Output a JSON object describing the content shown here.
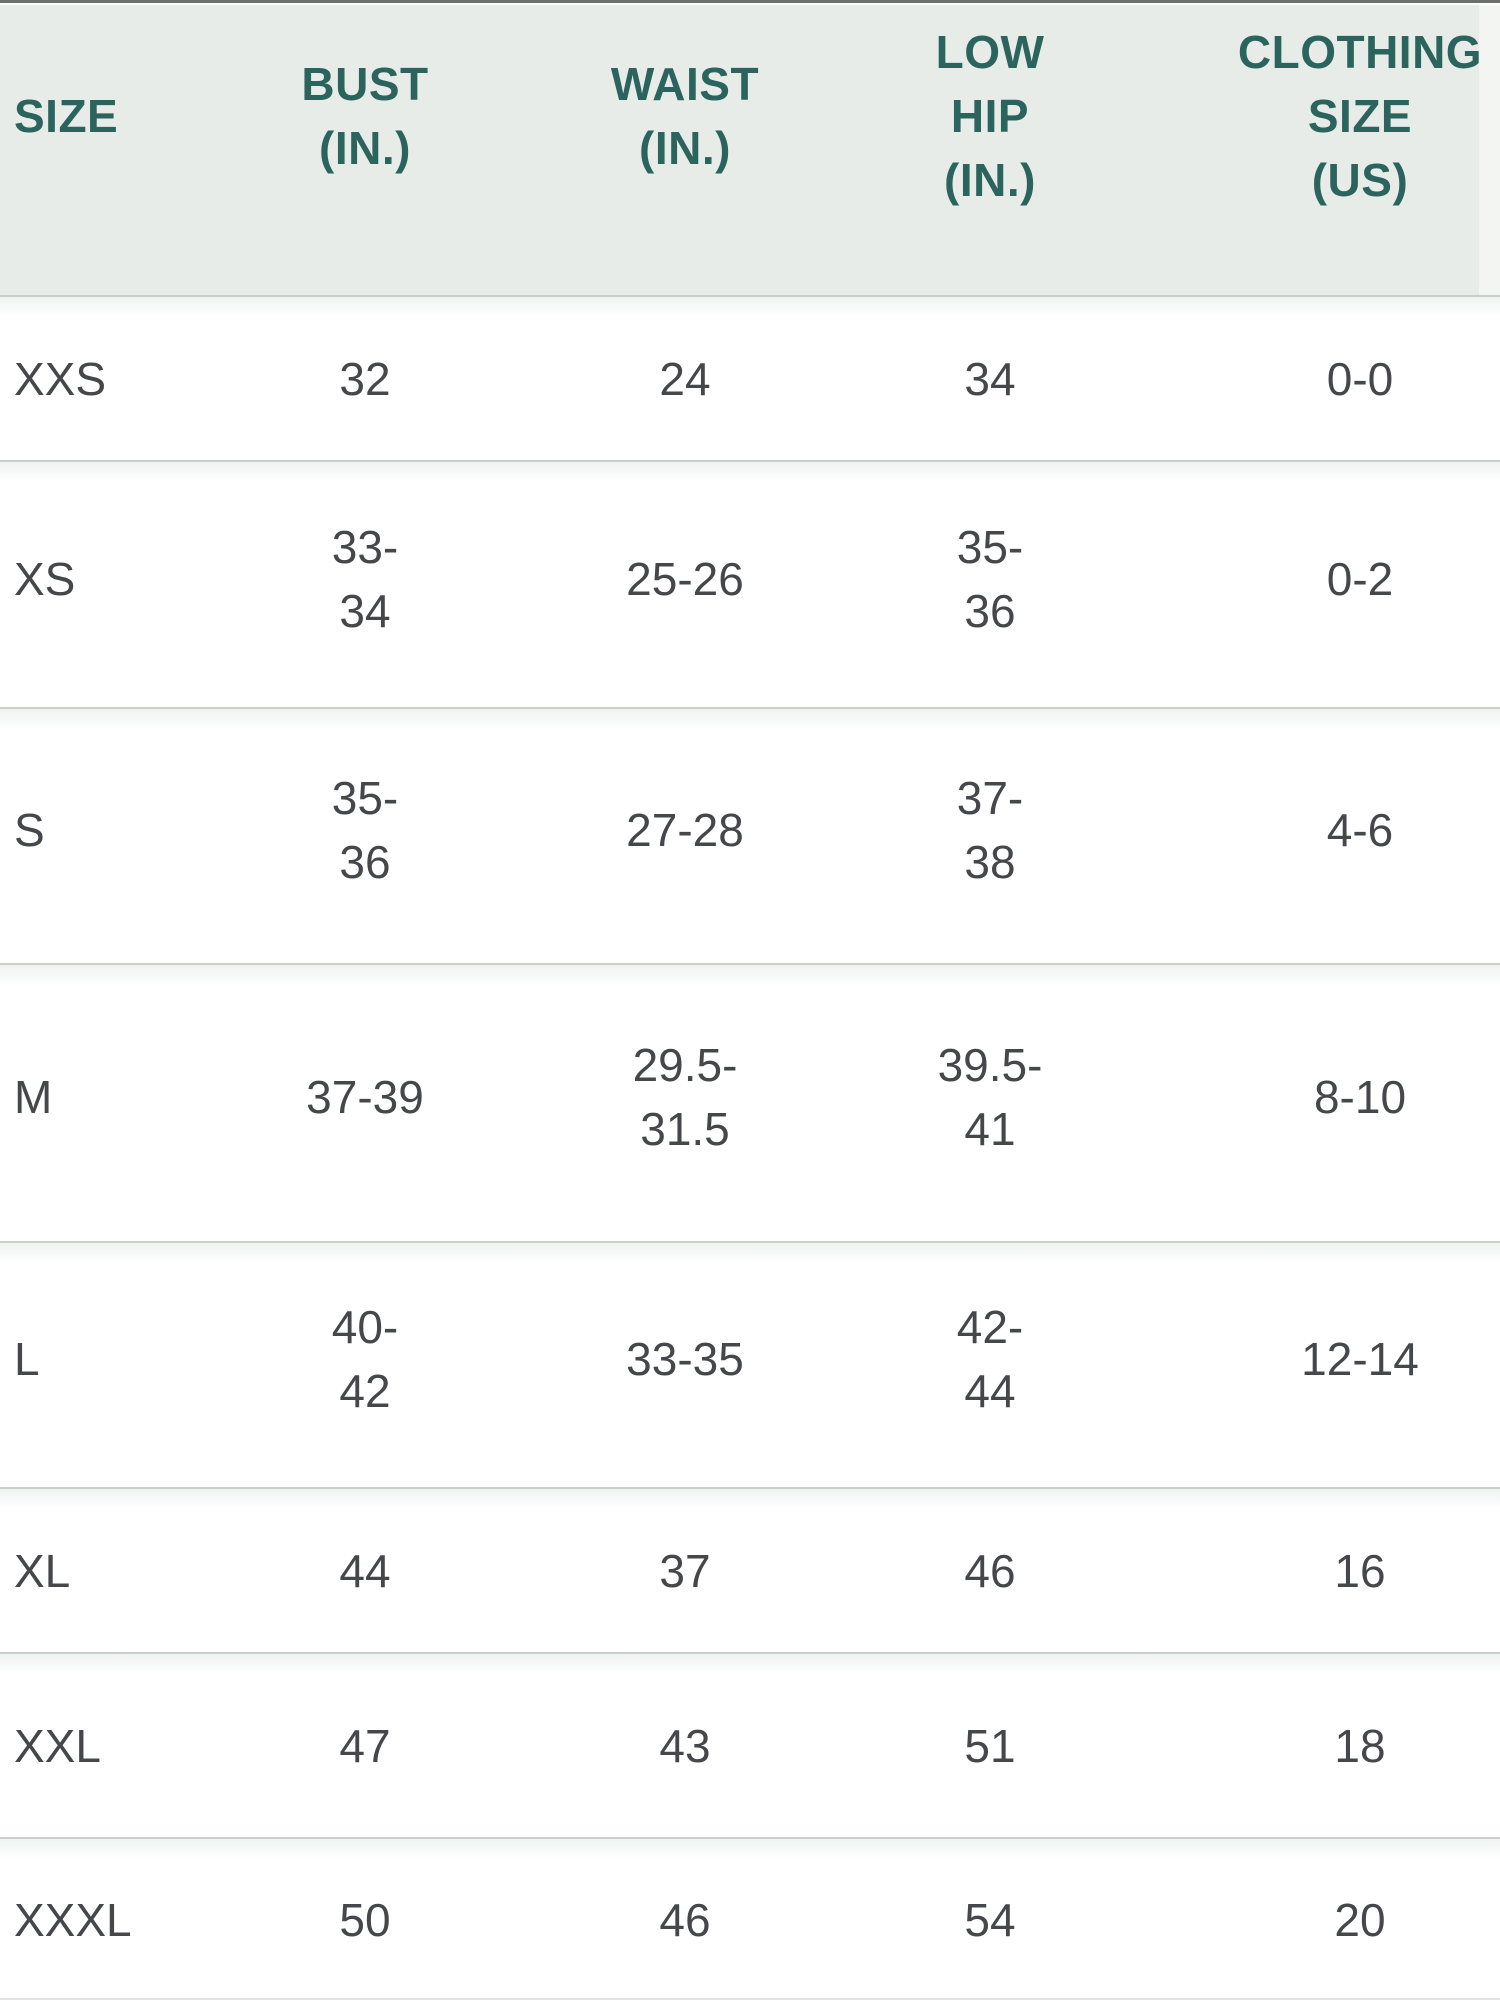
{
  "colors": {
    "header-bg": "#e7ece8",
    "header-text": "#2b635d",
    "body-text": "#45474a",
    "divider": "#c9d0cc",
    "row-fade": "#eef3f0",
    "top-edge": "#6b6f6d",
    "corner-strip": "#f2f5f2",
    "bottom-edge": "#dfe4e1"
  },
  "table": {
    "header": [
      {
        "id": "size",
        "lines": [
          "SIZE"
        ]
      },
      {
        "id": "bust",
        "lines": [
          "BUST",
          "(IN.)"
        ]
      },
      {
        "id": "waist",
        "lines": [
          "WAIST",
          "(IN.)"
        ]
      },
      {
        "id": "low-hip",
        "lines": [
          "LOW",
          "HIP",
          "(IN.)"
        ]
      },
      {
        "id": "clothing-size",
        "lines": [
          "CLOTHING",
          "SIZE",
          "(US)"
        ]
      }
    ],
    "rows": [
      {
        "label": "XXS",
        "cells": [
          [
            "32"
          ],
          [
            "24"
          ],
          [
            "34"
          ],
          [
            "0-0"
          ]
        ]
      },
      {
        "label": "XS",
        "cells": [
          [
            "33-",
            "34"
          ],
          [
            "25-26"
          ],
          [
            "35-",
            "36"
          ],
          [
            "0-2"
          ]
        ]
      },
      {
        "label": "S",
        "cells": [
          [
            "35-",
            "36"
          ],
          [
            "27-28"
          ],
          [
            "37-",
            "38"
          ],
          [
            "4-6"
          ]
        ]
      },
      {
        "label": "M",
        "cells": [
          [
            "37-39"
          ],
          [
            "29.5-",
            "31.5"
          ],
          [
            "39.5-",
            "41"
          ],
          [
            "8-10"
          ]
        ]
      },
      {
        "label": "L",
        "cells": [
          [
            "40-",
            "42"
          ],
          [
            "33-35"
          ],
          [
            "42-",
            "44"
          ],
          [
            "12-14"
          ]
        ]
      },
      {
        "label": "XL",
        "cells": [
          [
            "44"
          ],
          [
            "37"
          ],
          [
            "46"
          ],
          [
            "16"
          ]
        ]
      },
      {
        "label": "XXL",
        "cells": [
          [
            "47"
          ],
          [
            "43"
          ],
          [
            "51"
          ],
          [
            "18"
          ]
        ]
      },
      {
        "label": "XXXL",
        "cells": [
          [
            "50"
          ],
          [
            "46"
          ],
          [
            "54"
          ],
          [
            "20"
          ]
        ]
      }
    ]
  },
  "chart_data": {
    "type": "table",
    "columns": [
      "SIZE",
      "BUST (IN.)",
      "WAIST (IN.)",
      "LOW HIP (IN.)",
      "CLOTHING SIZE (US)"
    ],
    "rows": [
      [
        "XXS",
        "32",
        "24",
        "34",
        "0-0"
      ],
      [
        "XS",
        "33-34",
        "25-26",
        "35-36",
        "0-2"
      ],
      [
        "S",
        "35-36",
        "27-28",
        "37-38",
        "4-6"
      ],
      [
        "M",
        "37-39",
        "29.5-31.5",
        "39.5-41",
        "8-10"
      ],
      [
        "L",
        "40-42",
        "33-35",
        "42-44",
        "12-14"
      ],
      [
        "XL",
        "44",
        "37",
        "46",
        "16"
      ],
      [
        "XXL",
        "47",
        "43",
        "51",
        "18"
      ],
      [
        "XXXL",
        "50",
        "46",
        "54",
        "20"
      ]
    ],
    "layout_hints": {
      "header_background": "#e7ece8",
      "header_text_color": "#2b635d",
      "first_column_align": "left",
      "other_columns_align": "center",
      "row_divider": "thin light gray-green line",
      "last_header_clipped_at_right_edge": true
    }
  }
}
